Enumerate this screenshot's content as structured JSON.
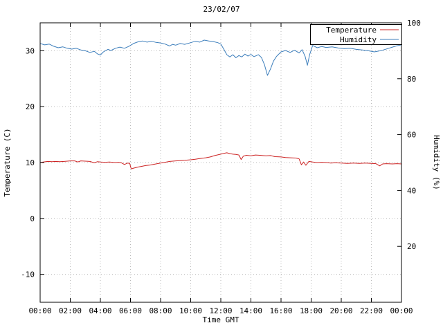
{
  "chart_data": {
    "type": "line",
    "title": "23/02/07",
    "xlabel": "Time GMT",
    "ylabel_left": "Temperature (C)",
    "ylabel_right": "Humidity (%)",
    "x_range": [
      0,
      24
    ],
    "x_tick_hours": [
      0,
      2,
      4,
      6,
      8,
      10,
      12,
      14,
      16,
      18,
      20,
      22,
      24
    ],
    "x_tick_labels": [
      "00:00",
      "02:00",
      "04:00",
      "06:00",
      "08:00",
      "10:00",
      "12:00",
      "14:00",
      "16:00",
      "18:00",
      "20:00",
      "22:00",
      "00:00"
    ],
    "y_left_range": [
      -15,
      35
    ],
    "y_left_ticks": [
      -10,
      0,
      10,
      20,
      30
    ],
    "y_right_range": [
      0,
      100
    ],
    "y_right_ticks": [
      20,
      40,
      60,
      80,
      100
    ],
    "grid_on": true,
    "grid_color": "#b9b9b9",
    "border_color": "#000000",
    "legend_position": "top-right",
    "series": [
      {
        "name": "Temperature",
        "axis": "left",
        "color": "#cc2222",
        "points": [
          [
            0,
            10.0
          ],
          [
            0.2,
            10.1
          ],
          [
            0.5,
            10.2
          ],
          [
            0.8,
            10.15
          ],
          [
            1,
            10.2
          ],
          [
            1.3,
            10.15
          ],
          [
            1.6,
            10.2
          ],
          [
            2,
            10.3
          ],
          [
            2.3,
            10.3
          ],
          [
            2.5,
            10.1
          ],
          [
            2.7,
            10.3
          ],
          [
            3,
            10.25
          ],
          [
            3.3,
            10.2
          ],
          [
            3.6,
            9.95
          ],
          [
            3.8,
            10.15
          ],
          [
            4,
            10.1
          ],
          [
            4.3,
            10.05
          ],
          [
            4.6,
            10.1
          ],
          [
            5,
            10.0
          ],
          [
            5.2,
            10.05
          ],
          [
            5.4,
            9.95
          ],
          [
            5.6,
            9.65
          ],
          [
            5.8,
            9.9
          ],
          [
            5.95,
            9.85
          ],
          [
            6.05,
            8.85
          ],
          [
            6.2,
            9.0
          ],
          [
            6.5,
            9.2
          ],
          [
            6.8,
            9.35
          ],
          [
            7,
            9.45
          ],
          [
            7.3,
            9.55
          ],
          [
            7.6,
            9.7
          ],
          [
            8,
            9.9
          ],
          [
            8.3,
            10.05
          ],
          [
            8.6,
            10.2
          ],
          [
            9,
            10.3
          ],
          [
            9.3,
            10.35
          ],
          [
            9.6,
            10.4
          ],
          [
            10,
            10.5
          ],
          [
            10.3,
            10.6
          ],
          [
            10.6,
            10.7
          ],
          [
            11,
            10.85
          ],
          [
            11.3,
            11.0
          ],
          [
            11.6,
            11.25
          ],
          [
            12,
            11.5
          ],
          [
            12.2,
            11.65
          ],
          [
            12.4,
            11.75
          ],
          [
            12.6,
            11.6
          ],
          [
            12.8,
            11.5
          ],
          [
            13,
            11.45
          ],
          [
            13.2,
            11.35
          ],
          [
            13.35,
            10.55
          ],
          [
            13.5,
            11.15
          ],
          [
            13.7,
            11.3
          ],
          [
            14,
            11.2
          ],
          [
            14.3,
            11.35
          ],
          [
            14.6,
            11.3
          ],
          [
            15,
            11.2
          ],
          [
            15.3,
            11.25
          ],
          [
            15.6,
            11.05
          ],
          [
            16,
            11.0
          ],
          [
            16.3,
            10.9
          ],
          [
            16.6,
            10.85
          ],
          [
            17,
            10.8
          ],
          [
            17.2,
            10.65
          ],
          [
            17.35,
            9.6
          ],
          [
            17.5,
            10.1
          ],
          [
            17.65,
            9.5
          ],
          [
            17.85,
            10.2
          ],
          [
            18.1,
            10.1
          ],
          [
            18.4,
            10.0
          ],
          [
            18.7,
            10.05
          ],
          [
            19,
            10.0
          ],
          [
            19.3,
            9.9
          ],
          [
            19.6,
            9.95
          ],
          [
            20,
            9.9
          ],
          [
            20.4,
            9.85
          ],
          [
            20.8,
            9.9
          ],
          [
            21.2,
            9.85
          ],
          [
            21.6,
            9.9
          ],
          [
            22,
            9.85
          ],
          [
            22.3,
            9.8
          ],
          [
            22.55,
            9.4
          ],
          [
            22.75,
            9.75
          ],
          [
            23,
            9.8
          ],
          [
            23.4,
            9.75
          ],
          [
            23.7,
            9.8
          ],
          [
            24,
            9.75
          ]
        ]
      },
      {
        "name": "Humidity",
        "axis": "right",
        "color": "#3b7dbb",
        "points": [
          [
            0,
            92.6
          ],
          [
            0.3,
            92.1
          ],
          [
            0.6,
            92.4
          ],
          [
            0.9,
            91.6
          ],
          [
            1.2,
            91.1
          ],
          [
            1.5,
            91.4
          ],
          [
            1.8,
            90.9
          ],
          [
            2.1,
            90.6
          ],
          [
            2.4,
            90.9
          ],
          [
            2.7,
            90.3
          ],
          [
            3,
            90.0
          ],
          [
            3.3,
            89.4
          ],
          [
            3.6,
            89.8
          ],
          [
            3.8,
            88.9
          ],
          [
            4,
            88.5
          ],
          [
            4.2,
            89.6
          ],
          [
            4.5,
            90.5
          ],
          [
            4.7,
            90.1
          ],
          [
            5,
            90.9
          ],
          [
            5.3,
            91.3
          ],
          [
            5.6,
            90.9
          ],
          [
            5.9,
            91.6
          ],
          [
            6.2,
            92.6
          ],
          [
            6.5,
            93.2
          ],
          [
            6.8,
            93.5
          ],
          [
            7.1,
            93.1
          ],
          [
            7.4,
            93.4
          ],
          [
            7.7,
            93.0
          ],
          [
            8,
            92.8
          ],
          [
            8.3,
            92.4
          ],
          [
            8.6,
            91.7
          ],
          [
            8.8,
            92.3
          ],
          [
            9,
            92.0
          ],
          [
            9.3,
            92.6
          ],
          [
            9.6,
            92.3
          ],
          [
            10,
            92.9
          ],
          [
            10.3,
            93.4
          ],
          [
            10.6,
            93.1
          ],
          [
            10.9,
            93.8
          ],
          [
            11.2,
            93.5
          ],
          [
            11.5,
            93.3
          ],
          [
            11.8,
            92.9
          ],
          [
            12,
            92.4
          ],
          [
            12.2,
            90.6
          ],
          [
            12.4,
            88.6
          ],
          [
            12.6,
            87.8
          ],
          [
            12.8,
            88.6
          ],
          [
            13,
            87.5
          ],
          [
            13.2,
            88.3
          ],
          [
            13.4,
            87.8
          ],
          [
            13.6,
            88.8
          ],
          [
            13.8,
            88.1
          ],
          [
            14,
            88.7
          ],
          [
            14.2,
            87.9
          ],
          [
            14.5,
            88.6
          ],
          [
            14.7,
            87.6
          ],
          [
            14.9,
            85.0
          ],
          [
            15.1,
            81.2
          ],
          [
            15.3,
            83.5
          ],
          [
            15.5,
            86.3
          ],
          [
            15.7,
            88.0
          ],
          [
            16,
            89.6
          ],
          [
            16.3,
            90.1
          ],
          [
            16.6,
            89.4
          ],
          [
            16.9,
            90.2
          ],
          [
            17.2,
            89.2
          ],
          [
            17.4,
            90.4
          ],
          [
            17.6,
            88.0
          ],
          [
            17.75,
            84.8
          ],
          [
            17.9,
            88.6
          ],
          [
            18.1,
            91.9
          ],
          [
            18.4,
            91.1
          ],
          [
            18.7,
            91.5
          ],
          [
            19,
            91.2
          ],
          [
            19.4,
            91.4
          ],
          [
            19.8,
            91.0
          ],
          [
            20.2,
            90.8
          ],
          [
            20.6,
            90.9
          ],
          [
            21,
            90.5
          ],
          [
            21.4,
            90.3
          ],
          [
            21.8,
            90.0
          ],
          [
            22.2,
            89.6
          ],
          [
            22.5,
            89.9
          ],
          [
            22.8,
            90.3
          ],
          [
            23.1,
            90.8
          ],
          [
            23.4,
            91.3
          ],
          [
            23.7,
            91.8
          ],
          [
            24,
            92.1
          ]
        ]
      }
    ]
  }
}
